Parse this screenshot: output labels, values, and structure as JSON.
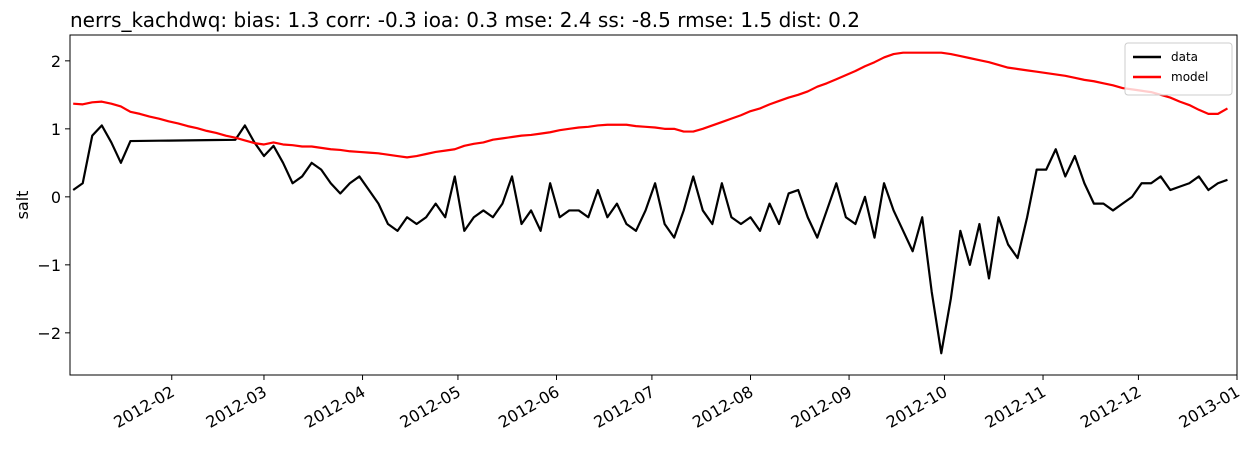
{
  "chart_data": {
    "type": "line",
    "title": "nerrs_kachdwq: bias: 1.3  corr: -0.3  ioa: 0.3  mse: 2.4  ss: -8.5  rmse: 1.5  dist: 0.2",
    "y_label": "salt",
    "x": [
      0,
      3,
      6,
      9,
      12,
      15,
      18,
      21,
      24,
      27,
      30,
      33,
      36,
      39,
      42,
      45,
      48,
      51,
      54,
      57,
      60,
      63,
      66,
      69,
      72,
      75,
      78,
      81,
      84,
      87,
      90,
      93,
      96,
      99,
      102,
      105,
      108,
      111,
      114,
      117,
      120,
      123,
      126,
      129,
      132,
      135,
      138,
      141,
      144,
      147,
      150,
      153,
      156,
      159,
      162,
      165,
      168,
      171,
      174,
      177,
      180,
      183,
      186,
      189,
      192,
      195,
      198,
      201,
      204,
      207,
      210,
      213,
      216,
      219,
      222,
      225,
      228,
      231,
      234,
      237,
      240,
      243,
      246,
      249,
      252,
      255,
      258,
      261,
      264,
      267,
      270,
      273,
      276,
      279,
      282,
      285,
      288,
      291,
      294,
      297,
      300,
      303,
      306,
      309,
      312,
      315,
      318,
      321,
      324,
      327,
      330,
      333,
      336,
      339,
      342,
      345,
      348,
      351,
      354,
      357,
      360,
      363
    ],
    "series": [
      {
        "name": "data",
        "color": "#000000",
        "values": [
          0.1,
          0.2,
          0.9,
          1.05,
          0.8,
          0.5,
          0.82,
          0.822,
          0.824,
          0.826,
          0.827,
          0.829,
          0.83,
          0.832,
          0.834,
          0.836,
          0.837,
          0.839,
          1.05,
          0.8,
          0.6,
          0.75,
          0.5,
          0.2,
          0.3,
          0.5,
          0.4,
          0.2,
          0.05,
          0.2,
          0.3,
          0.1,
          -0.1,
          -0.4,
          -0.5,
          -0.3,
          -0.4,
          -0.3,
          -0.1,
          -0.3,
          0.3,
          -0.5,
          -0.3,
          -0.2,
          -0.3,
          -0.1,
          0.3,
          -0.4,
          -0.2,
          -0.5,
          0.2,
          -0.3,
          -0.2,
          -0.2,
          -0.3,
          0.1,
          -0.3,
          -0.1,
          -0.4,
          -0.5,
          -0.2,
          0.2,
          -0.4,
          -0.6,
          -0.2,
          0.3,
          -0.2,
          -0.4,
          0.2,
          -0.3,
          -0.4,
          -0.3,
          -0.5,
          -0.1,
          -0.4,
          0.05,
          0.1,
          -0.3,
          -0.6,
          -0.2,
          0.2,
          -0.3,
          -0.4,
          0.0,
          -0.6,
          0.2,
          -0.2,
          -0.5,
          -0.8,
          -0.3,
          -1.4,
          -2.3,
          -1.5,
          -0.5,
          -1.0,
          -0.4,
          -1.2,
          -0.3,
          -0.7,
          -0.9,
          -0.3,
          0.4,
          0.4,
          0.7,
          0.3,
          0.6,
          0.2,
          -0.1,
          -0.1,
          -0.2,
          -0.1,
          0.0,
          0.2,
          0.2,
          0.3,
          0.1,
          0.15,
          0.2,
          0.3,
          0.1,
          0.2,
          0.25
        ]
      },
      {
        "name": "model",
        "color": "#ff0000",
        "values": [
          1.37,
          1.36,
          1.39,
          1.4,
          1.37,
          1.33,
          1.25,
          1.22,
          1.18,
          1.15,
          1.11,
          1.08,
          1.04,
          1.01,
          0.97,
          0.94,
          0.9,
          0.87,
          0.83,
          0.79,
          0.77,
          0.8,
          0.77,
          0.76,
          0.74,
          0.74,
          0.72,
          0.7,
          0.69,
          0.67,
          0.66,
          0.65,
          0.64,
          0.62,
          0.6,
          0.58,
          0.6,
          0.63,
          0.66,
          0.68,
          0.7,
          0.75,
          0.78,
          0.8,
          0.84,
          0.86,
          0.88,
          0.9,
          0.91,
          0.93,
          0.95,
          0.98,
          1.0,
          1.02,
          1.03,
          1.05,
          1.06,
          1.06,
          1.06,
          1.04,
          1.03,
          1.02,
          1.0,
          1.0,
          0.96,
          0.96,
          1.0,
          1.05,
          1.1,
          1.15,
          1.2,
          1.26,
          1.3,
          1.36,
          1.41,
          1.46,
          1.5,
          1.55,
          1.62,
          1.67,
          1.73,
          1.79,
          1.85,
          1.92,
          1.98,
          2.05,
          2.1,
          2.12,
          2.12,
          2.12,
          2.12,
          2.12,
          2.1,
          2.07,
          2.04,
          2.01,
          1.98,
          1.94,
          1.9,
          1.88,
          1.86,
          1.84,
          1.82,
          1.8,
          1.78,
          1.75,
          1.72,
          1.7,
          1.67,
          1.64,
          1.6,
          1.58,
          1.56,
          1.54,
          1.5,
          1.46,
          1.4,
          1.35,
          1.28,
          1.22,
          1.22,
          1.3
        ]
      }
    ],
    "xlim": [
      -1,
      366
    ],
    "xticks": [
      {
        "value": 31,
        "label": "2012-02"
      },
      {
        "value": 60,
        "label": "2012-03"
      },
      {
        "value": 91,
        "label": "2012-04"
      },
      {
        "value": 121,
        "label": "2012-05"
      },
      {
        "value": 152,
        "label": "2012-06"
      },
      {
        "value": 182,
        "label": "2012-07"
      },
      {
        "value": 213,
        "label": "2012-08"
      },
      {
        "value": 244,
        "label": "2012-09"
      },
      {
        "value": 274,
        "label": "2012-10"
      },
      {
        "value": 305,
        "label": "2012-11"
      },
      {
        "value": 335,
        "label": "2012-12"
      },
      {
        "value": 366,
        "label": "2013-01"
      }
    ],
    "ylim": [
      -2.62,
      2.38
    ],
    "yticks": [
      {
        "value": -2,
        "label": "−2"
      },
      {
        "value": -1,
        "label": "−1"
      },
      0,
      1,
      2
    ],
    "legend": "upper right"
  }
}
